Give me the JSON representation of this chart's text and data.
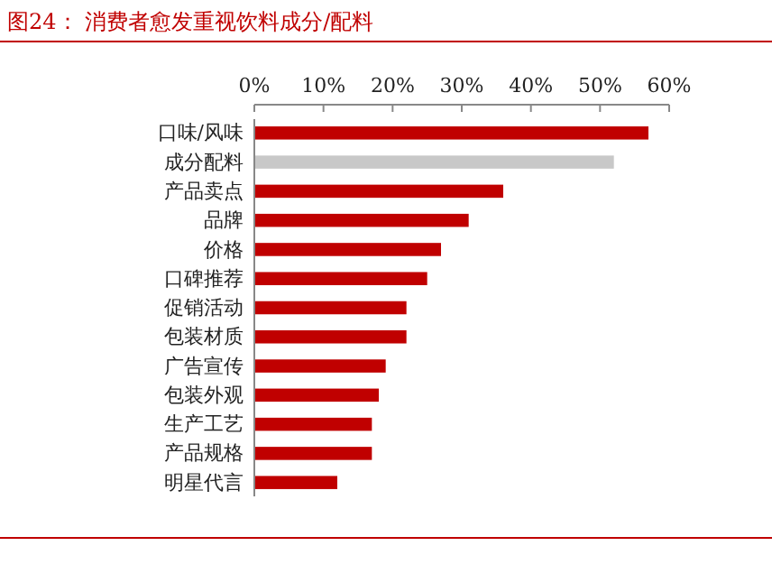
{
  "chart_data": {
    "type": "bar",
    "orientation": "horizontal",
    "title": "图24：  消费者愈发重视饮料成分/配料",
    "categories": [
      "口味/风味",
      "成分配料",
      "产品卖点",
      "品牌",
      "价格",
      "口碑推荐",
      "促销活动",
      "包装材质",
      "广告宣传",
      "包装外观",
      "生产工艺",
      "产品规格",
      "明星代言"
    ],
    "values": [
      57,
      52,
      36,
      31,
      27,
      25,
      22,
      22,
      19,
      18,
      17,
      17,
      12
    ],
    "colors": [
      "#c00000",
      "#c8c8c8",
      "#c00000",
      "#c00000",
      "#c00000",
      "#c00000",
      "#c00000",
      "#c00000",
      "#c00000",
      "#c00000",
      "#c00000",
      "#c00000",
      "#c00000"
    ],
    "xlim": [
      0,
      60
    ],
    "xticks": [
      {
        "value": 0,
        "label": "0%"
      },
      {
        "value": 10,
        "label": "10%"
      },
      {
        "value": 20,
        "label": "20%"
      },
      {
        "value": 30,
        "label": "30%"
      },
      {
        "value": 40,
        "label": "40%"
      },
      {
        "value": 50,
        "label": "50%"
      },
      {
        "value": 60,
        "label": "60%"
      }
    ],
    "grid": false
  }
}
